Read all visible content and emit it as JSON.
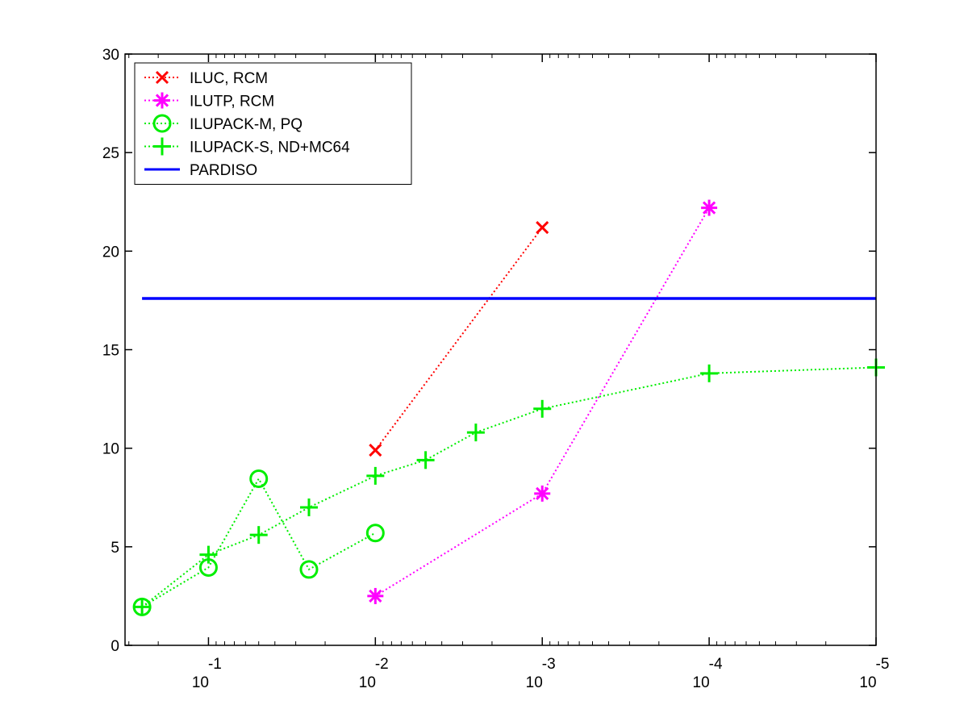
{
  "chart_data": {
    "type": "line",
    "title": "",
    "xlabel": "",
    "ylabel": "",
    "x_scale": "log",
    "x_reversed": true,
    "xlim": [
      0.3162,
      1e-05
    ],
    "ylim": [
      0,
      30
    ],
    "y_ticks": [
      0,
      5,
      10,
      15,
      20,
      25,
      30
    ],
    "x_ticks": [
      {
        "value": 0.1,
        "base": "10",
        "exponent": "-1"
      },
      {
        "value": 0.01,
        "base": "10",
        "exponent": "-2"
      },
      {
        "value": 0.001,
        "base": "10",
        "exponent": "-3"
      },
      {
        "value": 0.0001,
        "base": "10",
        "exponent": "-4"
      },
      {
        "value": 1e-05,
        "base": "10",
        "exponent": "-5"
      }
    ],
    "grid": false,
    "legend_position": "top-left",
    "series": [
      {
        "name": "ILUC, RCM",
        "color": "#ff0000",
        "marker": "x",
        "line": "dotted",
        "x": [
          0.01,
          0.001
        ],
        "y": [
          9.9,
          21.2
        ]
      },
      {
        "name": "ILUTP, RCM",
        "color": "#ff00ff",
        "marker": "asterisk",
        "line": "dotted",
        "x": [
          0.01,
          0.001,
          0.0001
        ],
        "y": [
          2.5,
          7.7,
          22.2
        ]
      },
      {
        "name": "ILUPACK-M, PQ",
        "color": "#00ee00",
        "marker": "circle",
        "line": "dotted",
        "x": [
          0.25,
          0.1,
          0.05,
          0.025,
          0.01
        ],
        "y": [
          1.95,
          3.95,
          8.45,
          3.85,
          5.7
        ]
      },
      {
        "name": "ILUPACK-S, ND+MC64",
        "color": "#00ee00",
        "marker": "plus",
        "line": "dotted",
        "x": [
          0.25,
          0.1,
          0.05,
          0.025,
          0.01,
          0.005,
          0.0025,
          0.001,
          0.0001,
          1e-05
        ],
        "y": [
          1.95,
          4.6,
          5.6,
          7.0,
          8.6,
          9.4,
          10.8,
          12.0,
          13.8,
          14.1
        ]
      },
      {
        "name": "PARDISO",
        "color": "#0000ff",
        "marker": "none",
        "line": "solid",
        "x": [
          0.25,
          1e-05
        ],
        "y": [
          17.6,
          17.6
        ]
      }
    ]
  }
}
